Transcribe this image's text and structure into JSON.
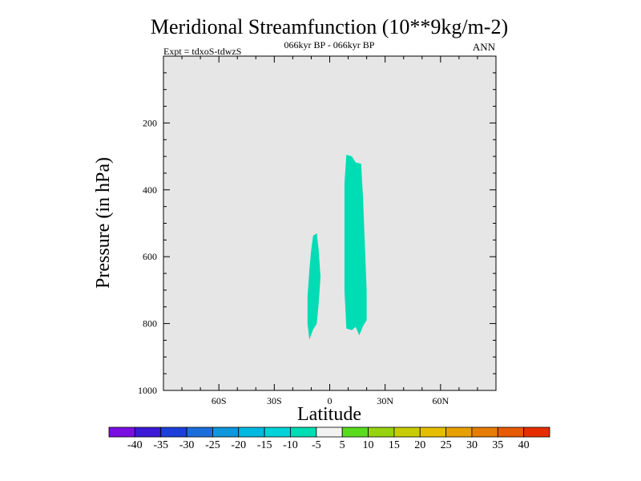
{
  "chart_data": {
    "type": "heatmap",
    "title": "Meridional Streamfunction (10**9kg/m-2)",
    "subtitle_left": "Expt = tdxoS-tdwzS",
    "subtitle_center": "066kyr BP - 066kyr BP",
    "subtitle_right": "ANN",
    "xlabel": "Latitude",
    "ylabel": "Pressure (in hPa)",
    "xlim": [
      -90,
      90
    ],
    "ylim": [
      1000,
      0
    ],
    "x_ticks": [
      {
        "value": -60,
        "label": "60S"
      },
      {
        "value": -30,
        "label": "30S"
      },
      {
        "value": 0,
        "label": "0"
      },
      {
        "value": 30,
        "label": "30N"
      },
      {
        "value": 60,
        "label": "60N"
      }
    ],
    "y_ticks": [
      {
        "value": 200,
        "label": "200"
      },
      {
        "value": 400,
        "label": "400"
      },
      {
        "value": 600,
        "label": "600"
      },
      {
        "value": 800,
        "label": "800"
      },
      {
        "value": 1000,
        "label": "1000"
      }
    ],
    "background_color": "#e6e6e6",
    "filled_regions": [
      {
        "bin": "-10 to -5",
        "color": "#00dcb4",
        "points": [
          [
            -9,
            537
          ],
          [
            -7,
            530
          ],
          [
            -6,
            580
          ],
          [
            -5,
            660
          ],
          [
            -6,
            740
          ],
          [
            -7,
            800
          ],
          [
            -9,
            818
          ],
          [
            -11,
            848
          ],
          [
            -12,
            800
          ],
          [
            -12,
            720
          ],
          [
            -11,
            640
          ],
          [
            -10,
            580
          ]
        ]
      },
      {
        "bin": "-10 to -5",
        "color": "#00dcb4",
        "points": [
          [
            9,
            295
          ],
          [
            12,
            300
          ],
          [
            14,
            318
          ],
          [
            17,
            322
          ],
          [
            18,
            420
          ],
          [
            19,
            560
          ],
          [
            20,
            700
          ],
          [
            20,
            790
          ],
          [
            18,
            808
          ],
          [
            16,
            835
          ],
          [
            14,
            810
          ],
          [
            12,
            820
          ],
          [
            9,
            815
          ],
          [
            8,
            700
          ],
          [
            8,
            520
          ],
          [
            8,
            380
          ]
        ]
      }
    ],
    "colorbar": {
      "colors": [
        "#7a0ee0",
        "#3c19d6",
        "#1b3fd8",
        "#1a6ed9",
        "#0f96dc",
        "#00b9e0",
        "#00d2d8",
        "#00dcb4",
        "#f2f2f2",
        "#5adc1e",
        "#96d20f",
        "#c8cc05",
        "#e6be00",
        "#e6a000",
        "#e67d00",
        "#e65a00",
        "#e62d00"
      ],
      "labels": [
        "-40",
        "-35",
        "-30",
        "-25",
        "-20",
        "-15",
        "-10",
        "-5",
        "5",
        "10",
        "15",
        "20",
        "25",
        "30",
        "35",
        "40"
      ]
    }
  }
}
